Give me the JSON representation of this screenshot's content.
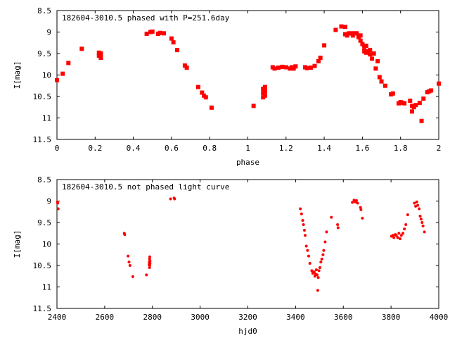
{
  "chart_data": [
    {
      "type": "scatter",
      "title": "182604-3010.5 phased with P=251.6day",
      "xlabel": "phase",
      "ylabel": "I[mag]",
      "xlim": [
        0,
        2
      ],
      "ylim": [
        8.5,
        11.5
      ],
      "y_inverted": true,
      "xticks": [
        "0",
        "0.2",
        "0.4",
        "0.6",
        "0.8",
        "1",
        "1.2",
        "1.4",
        "1.6",
        "1.8",
        "2"
      ],
      "yticks": [
        "8.5",
        "9",
        "9.5",
        "10",
        "10.5",
        "11",
        "11.5"
      ],
      "marker_color": "#ff0000",
      "points": [
        [
          0.0,
          10.12
        ],
        [
          0.03,
          9.97
        ],
        [
          0.06,
          9.72
        ],
        [
          0.13,
          9.39
        ],
        [
          0.22,
          9.48
        ],
        [
          0.22,
          9.55
        ],
        [
          0.23,
          9.5
        ],
        [
          0.23,
          9.6
        ],
        [
          0.47,
          9.04
        ],
        [
          0.49,
          9.0
        ],
        [
          0.5,
          8.99
        ],
        [
          0.53,
          9.04
        ],
        [
          0.54,
          9.02
        ],
        [
          0.56,
          9.03
        ],
        [
          0.6,
          9.15
        ],
        [
          0.61,
          9.24
        ],
        [
          0.63,
          9.42
        ],
        [
          0.67,
          9.78
        ],
        [
          0.68,
          9.83
        ],
        [
          0.74,
          10.28
        ],
        [
          0.76,
          10.41
        ],
        [
          0.77,
          10.48
        ],
        [
          0.78,
          10.52
        ],
        [
          0.81,
          10.76
        ],
        [
          1.03,
          10.72
        ],
        [
          1.08,
          10.32
        ],
        [
          1.08,
          10.42
        ],
        [
          1.08,
          10.52
        ],
        [
          1.09,
          10.28
        ],
        [
          1.09,
          10.38
        ],
        [
          1.09,
          10.48
        ],
        [
          1.13,
          9.82
        ],
        [
          1.14,
          9.85
        ],
        [
          1.16,
          9.83
        ],
        [
          1.18,
          9.81
        ],
        [
          1.2,
          9.82
        ],
        [
          1.22,
          9.85
        ],
        [
          1.23,
          9.82
        ],
        [
          1.24,
          9.85
        ],
        [
          1.25,
          9.8
        ],
        [
          1.3,
          9.82
        ],
        [
          1.31,
          9.84
        ],
        [
          1.33,
          9.83
        ],
        [
          1.35,
          9.79
        ],
        [
          1.37,
          9.68
        ],
        [
          1.38,
          9.6
        ],
        [
          1.4,
          9.31
        ],
        [
          1.46,
          8.95
        ],
        [
          1.49,
          8.87
        ],
        [
          1.51,
          8.88
        ],
        [
          1.51,
          9.05
        ],
        [
          1.52,
          9.08
        ],
        [
          1.53,
          9.03
        ],
        [
          1.54,
          9.03
        ],
        [
          1.55,
          9.08
        ],
        [
          1.56,
          9.03
        ],
        [
          1.57,
          9.03
        ],
        [
          1.58,
          9.12
        ],
        [
          1.59,
          9.2
        ],
        [
          1.59,
          9.08
        ],
        [
          1.6,
          9.28
        ],
        [
          1.61,
          9.35
        ],
        [
          1.61,
          9.45
        ],
        [
          1.62,
          9.48
        ],
        [
          1.62,
          9.32
        ],
        [
          1.63,
          9.45
        ],
        [
          1.64,
          9.52
        ],
        [
          1.64,
          9.42
        ],
        [
          1.65,
          9.62
        ],
        [
          1.66,
          9.5
        ],
        [
          1.67,
          9.85
        ],
        [
          1.68,
          9.68
        ],
        [
          1.69,
          10.05
        ],
        [
          1.7,
          10.15
        ],
        [
          1.72,
          10.25
        ],
        [
          1.75,
          10.45
        ],
        [
          1.76,
          10.43
        ],
        [
          1.79,
          10.66
        ],
        [
          1.8,
          10.63
        ],
        [
          1.81,
          10.65
        ],
        [
          1.82,
          10.66
        ],
        [
          1.85,
          10.6
        ],
        [
          1.86,
          10.85
        ],
        [
          1.86,
          10.72
        ],
        [
          1.87,
          10.75
        ],
        [
          1.88,
          10.7
        ],
        [
          1.9,
          10.65
        ],
        [
          1.91,
          11.07
        ],
        [
          1.92,
          10.55
        ],
        [
          1.94,
          10.4
        ],
        [
          1.95,
          10.38
        ],
        [
          1.96,
          10.36
        ],
        [
          2.0,
          10.2
        ]
      ]
    },
    {
      "type": "scatter",
      "title": "182604-3010.5 not phased light curve",
      "xlabel": "hjd0",
      "ylabel": "I[mag]",
      "xlim": [
        2400,
        4000
      ],
      "ylim": [
        8.5,
        11.5
      ],
      "y_inverted": true,
      "xticks": [
        "2400",
        "2600",
        "2800",
        "3000",
        "3200",
        "3400",
        "3600",
        "3800",
        "4000"
      ],
      "yticks": [
        "8.5",
        "9",
        "9.5",
        "10",
        "10.5",
        "11",
        "11.5"
      ],
      "marker_color": "#ff0000",
      "points": [
        [
          2402,
          9.02
        ],
        [
          2403,
          9.05
        ],
        [
          2405,
          9.18
        ],
        [
          2682,
          9.75
        ],
        [
          2684,
          9.78
        ],
        [
          2698,
          10.28
        ],
        [
          2702,
          10.42
        ],
        [
          2706,
          10.5
        ],
        [
          2718,
          10.76
        ],
        [
          2775,
          10.72
        ],
        [
          2786,
          10.48
        ],
        [
          2787,
          10.42
        ],
        [
          2788,
          10.35
        ],
        [
          2788,
          10.55
        ],
        [
          2789,
          10.3
        ],
        [
          2789,
          10.5
        ],
        [
          2790,
          10.45
        ],
        [
          2790,
          10.4
        ],
        [
          2876,
          8.95
        ],
        [
          2891,
          8.93
        ],
        [
          2893,
          8.95
        ],
        [
          3420,
          9.18
        ],
        [
          3425,
          9.3
        ],
        [
          3430,
          9.45
        ],
        [
          3433,
          9.55
        ],
        [
          3437,
          9.68
        ],
        [
          3440,
          9.8
        ],
        [
          3445,
          10.05
        ],
        [
          3450,
          10.15
        ],
        [
          3455,
          10.28
        ],
        [
          3460,
          10.45
        ],
        [
          3468,
          10.62
        ],
        [
          3472,
          10.68
        ],
        [
          3478,
          10.65
        ],
        [
          3481,
          10.75
        ],
        [
          3484,
          10.7
        ],
        [
          3487,
          10.6
        ],
        [
          3490,
          10.72
        ],
        [
          3493,
          11.08
        ],
        [
          3495,
          10.78
        ],
        [
          3498,
          10.62
        ],
        [
          3502,
          10.55
        ],
        [
          3506,
          10.42
        ],
        [
          3510,
          10.35
        ],
        [
          3515,
          10.25
        ],
        [
          3518,
          10.15
        ],
        [
          3524,
          9.95
        ],
        [
          3530,
          9.72
        ],
        [
          3550,
          9.38
        ],
        [
          3576,
          9.55
        ],
        [
          3578,
          9.62
        ],
        [
          3638,
          9.03
        ],
        [
          3645,
          8.98
        ],
        [
          3650,
          9.02
        ],
        [
          3655,
          8.99
        ],
        [
          3660,
          9.05
        ],
        [
          3672,
          9.15
        ],
        [
          3674,
          9.2
        ],
        [
          3680,
          9.4
        ],
        [
          3802,
          9.82
        ],
        [
          3808,
          9.8
        ],
        [
          3812,
          9.85
        ],
        [
          3818,
          9.78
        ],
        [
          3822,
          9.8
        ],
        [
          3828,
          9.85
        ],
        [
          3833,
          9.75
        ],
        [
          3838,
          9.88
        ],
        [
          3843,
          9.8
        ],
        [
          3850,
          9.75
        ],
        [
          3856,
          9.65
        ],
        [
          3862,
          9.55
        ],
        [
          3870,
          9.32
        ],
        [
          3898,
          9.05
        ],
        [
          3903,
          9.12
        ],
        [
          3908,
          9.02
        ],
        [
          3912,
          9.1
        ],
        [
          3918,
          9.18
        ],
        [
          3922,
          9.35
        ],
        [
          3926,
          9.42
        ],
        [
          3930,
          9.5
        ],
        [
          3934,
          9.58
        ],
        [
          3940,
          9.72
        ]
      ]
    }
  ]
}
